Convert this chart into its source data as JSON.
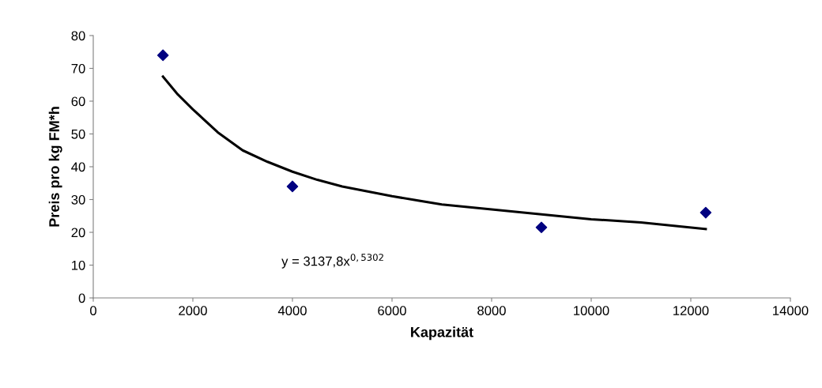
{
  "chart_data": {
    "type": "scatter",
    "xlabel": "Kapazität",
    "ylabel": "Preis pro kg FM*h",
    "xlim": [
      0,
      14000
    ],
    "xticks": [
      0,
      2000,
      4000,
      6000,
      8000,
      10000,
      12000,
      14000
    ],
    "ylim": [
      0,
      80
    ],
    "yticks": [
      0,
      10,
      20,
      30,
      40,
      50,
      60,
      70,
      80
    ],
    "grid": false,
    "annotations": [
      "y = 3137,8x$^{0,5302}$"
    ],
    "series": [
      {
        "marker": "diamond",
        "color": "#000080",
        "x": [
          1400,
          4000,
          9000,
          12300
        ],
        "values": [
          74,
          34,
          21.5,
          26
        ]
      },
      {
        "type": "line",
        "marker": "none",
        "color": "#000000",
        "x": [
          1400,
          1700,
          2000,
          2500,
          3000,
          3500,
          4000,
          4500,
          5000,
          6000,
          7000,
          8000,
          9000,
          10000,
          11000,
          12300
        ],
        "values": [
          67.5,
          62,
          57.5,
          50.5,
          45,
          41.5,
          38.5,
          36,
          34,
          31,
          28.5,
          27,
          25.5,
          24,
          23,
          21
        ]
      }
    ]
  }
}
